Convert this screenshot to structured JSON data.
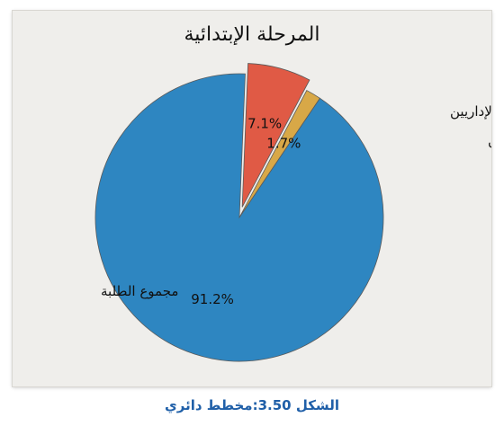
{
  "chart_data": {
    "type": "pie",
    "title": "المرحلة الإبتدائية",
    "slices": [
      {
        "label": "مجموع الإداريين",
        "value": 1.7,
        "pct_label": "1.7%",
        "color": "#d8a847",
        "explode": false
      },
      {
        "label": "مجموع المعلمين",
        "value": 7.1,
        "pct_label": "7.1%",
        "color": "#e05a45",
        "explode": true
      },
      {
        "label": "مجموع الطلبة",
        "value": 91.2,
        "pct_label": "91.2%",
        "color": "#2e86c1",
        "explode": false
      }
    ]
  },
  "caption": "الشكل 3.50:مخطط دائري"
}
